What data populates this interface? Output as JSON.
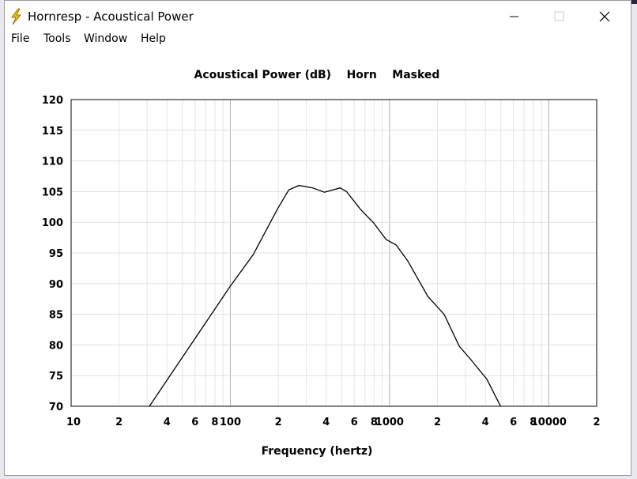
{
  "window": {
    "title": "Hornresp - Acoustical Power",
    "menu": [
      "File",
      "Tools",
      "Window",
      "Help"
    ]
  },
  "chart_data": {
    "type": "line",
    "title": "Acoustical Power (dB)    Horn    Masked",
    "x_label": "Frequency (hertz)",
    "xlog": true,
    "grid": true,
    "color": "#000000",
    "xlim": [
      10,
      20000
    ],
    "ylim": [
      70,
      120
    ],
    "xticks": [
      10,
      {
        "value": 20,
        "label": "2"
      },
      {
        "value": 40,
        "label": "4"
      },
      {
        "value": 60,
        "label": "6"
      },
      {
        "value": 80,
        "label": "8"
      },
      100,
      {
        "value": 200,
        "label": "2"
      },
      {
        "value": 400,
        "label": "4"
      },
      {
        "value": 600,
        "label": "6"
      },
      {
        "value": 800,
        "label": "8"
      },
      1000,
      {
        "value": 2000,
        "label": "2"
      },
      {
        "value": 4000,
        "label": "4"
      },
      {
        "value": 6000,
        "label": "6"
      },
      {
        "value": 8000,
        "label": "8"
      },
      10000,
      {
        "value": 20000,
        "label": "2"
      }
    ],
    "xgrid_minor": [
      30,
      50,
      70,
      90,
      300,
      500,
      700,
      900,
      3000,
      5000,
      7000,
      9000
    ],
    "yticks": [
      70,
      75,
      80,
      85,
      90,
      95,
      100,
      105,
      110,
      115,
      120
    ],
    "x": [
      31,
      100,
      139,
      197,
      233,
      270,
      329,
      390,
      489,
      537,
      657,
      795,
      950,
      1100,
      1300,
      1740,
      2200,
      2740,
      3240,
      4090,
      4980
    ],
    "values": [
      70,
      89.6,
      94.7,
      102.1,
      105.3,
      106,
      105.6,
      104.9,
      105.6,
      105,
      102.1,
      99.9,
      97.2,
      96.3,
      93.7,
      87.9,
      85,
      79.8,
      77.6,
      74.4,
      70
    ]
  }
}
